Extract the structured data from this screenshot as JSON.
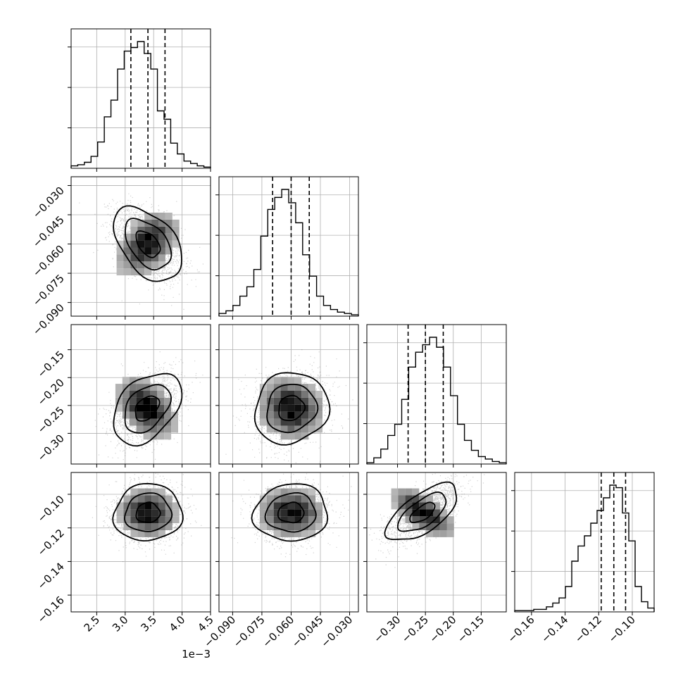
{
  "chart_data": {
    "type": "corner",
    "n_params": 4,
    "grid": true,
    "colors": {
      "line": "#000000",
      "grid": "#b0b0b0",
      "background": "#ffffff",
      "density": "#000000"
    },
    "params": [
      {
        "index": 0,
        "range": [
          2.05,
          4.5
        ],
        "ticks": [
          2.5,
          3.0,
          3.5,
          4.0,
          4.5
        ],
        "tick_labels": [
          "2.5",
          "3.0",
          "3.5",
          "4.0",
          "4.5"
        ],
        "offset_text": "1e−3",
        "quantiles": [
          3.1,
          3.4,
          3.7
        ]
      },
      {
        "index": 1,
        "range": [
          -0.097,
          -0.0255
        ],
        "ticks": [
          -0.09,
          -0.075,
          -0.06,
          -0.045,
          -0.03
        ],
        "tick_labels": [
          "−0.090",
          "−0.075",
          "−0.060",
          "−0.045",
          "−0.030"
        ],
        "quantiles": [
          -0.0695,
          -0.06,
          -0.0507
        ]
      },
      {
        "index": 2,
        "range": [
          -0.355,
          -0.105
        ],
        "ticks": [
          -0.3,
          -0.25,
          -0.2,
          -0.15
        ],
        "tick_labels": [
          "−0.30",
          "−0.25",
          "−0.20",
          "−0.15"
        ],
        "quantiles": [
          -0.281,
          -0.25,
          -0.218
        ]
      },
      {
        "index": 3,
        "range": [
          -0.17,
          -0.087
        ],
        "ticks": [
          -0.16,
          -0.14,
          -0.12,
          -0.1
        ],
        "tick_labels": [
          "−0.16",
          "−0.14",
          "−0.12",
          "−0.10"
        ],
        "quantiles": [
          -0.1185,
          -0.111,
          -0.104
        ]
      }
    ],
    "histograms": [
      {
        "param": 0,
        "counts": [
          2,
          3,
          5,
          10,
          22,
          43,
          57,
          83,
          98,
          101,
          106,
          96,
          83,
          48,
          41,
          21,
          12,
          6,
          4,
          2,
          1
        ]
      },
      {
        "param": 1,
        "counts": [
          2,
          4,
          8,
          15,
          22,
          35,
          60,
          80,
          89,
          95,
          85,
          70,
          46,
          30,
          15,
          8,
          5,
          3,
          2,
          1
        ]
      },
      {
        "param": 2,
        "counts": [
          1,
          5,
          12,
          23,
          32,
          52,
          78,
          90,
          96,
          102,
          94,
          78,
          55,
          32,
          19,
          11,
          6,
          4,
          2,
          1
        ]
      },
      {
        "param": 3,
        "counts": [
          1,
          1,
          1,
          2,
          2,
          4,
          7,
          11,
          20,
          40,
          52,
          60,
          70,
          80,
          90,
          100,
          98,
          78,
          56,
          20,
          8,
          3
        ]
      }
    ],
    "pairs": [
      {
        "x": 1,
        "y": 0,
        "mean": [
          3.4,
          -0.06
        ],
        "sd": [
          0.3,
          0.0095
        ],
        "rho": -0.45
      },
      {
        "x": 2,
        "y": 0,
        "mean": [
          3.38,
          -0.255
        ],
        "sd": [
          0.3,
          0.032
        ],
        "rho": 0.4
      },
      {
        "x": 2,
        "y": 1,
        "mean": [
          -0.06,
          -0.255
        ],
        "sd": [
          0.0095,
          0.032
        ],
        "rho": 0.1
      },
      {
        "x": 3,
        "y": 0,
        "mean": [
          3.4,
          -0.111
        ],
        "sd": [
          0.3,
          0.0085
        ],
        "rho": 0.05
      },
      {
        "x": 3,
        "y": 1,
        "mean": [
          -0.06,
          -0.111
        ],
        "sd": [
          0.0095,
          0.0085
        ],
        "rho": 0.05
      },
      {
        "x": 3,
        "y": 2,
        "mean": [
          -0.255,
          -0.111
        ],
        "sd": [
          0.032,
          0.0085
        ],
        "rho": 0.65
      }
    ]
  }
}
